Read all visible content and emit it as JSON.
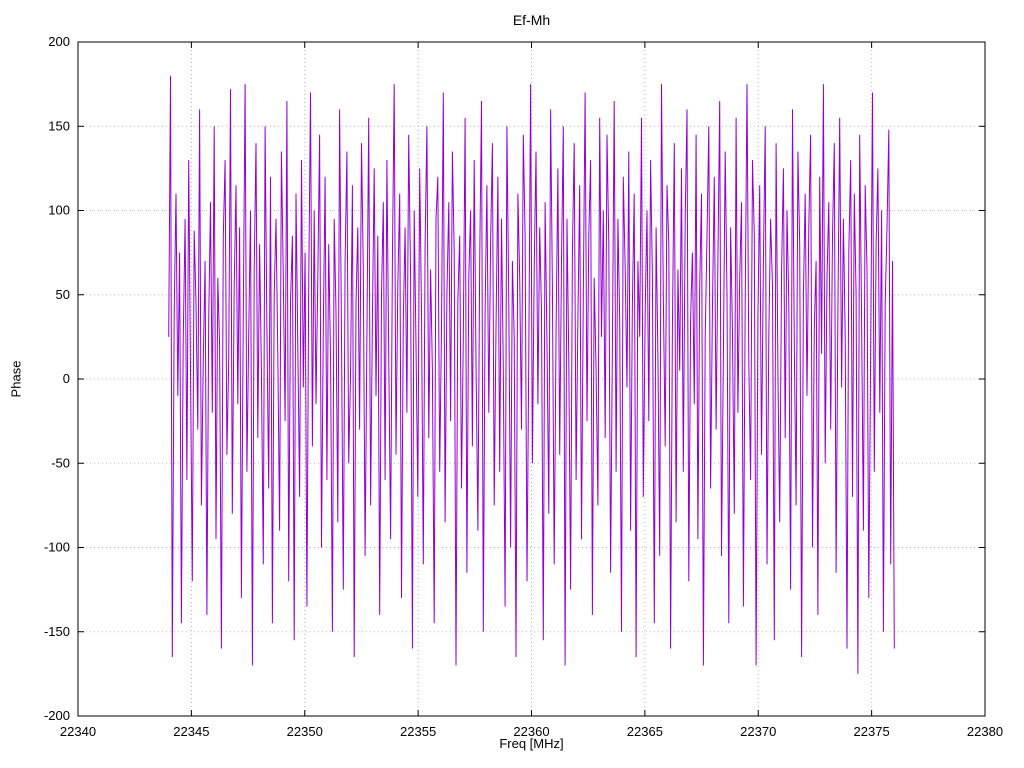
{
  "page": {
    "background": "#ffffff"
  },
  "chart_data": {
    "type": "line",
    "title": "Ef-Mh",
    "xlabel": "Freq [MHz]",
    "ylabel": "Phase",
    "xlim": [
      22340,
      22380
    ],
    "ylim": [
      -200,
      200
    ],
    "xticks": [
      22340,
      22345,
      22350,
      22355,
      22360,
      22365,
      22370,
      22375,
      22380
    ],
    "yticks": [
      -200,
      -150,
      -100,
      -50,
      0,
      50,
      100,
      150,
      200
    ],
    "grid": true,
    "grid_style": "dotted",
    "grid_color": "#b8b8b8",
    "legend": "none",
    "line_color": "#9400d3",
    "series": [
      {
        "name": "Phase",
        "x_start": 22344.0,
        "x_end": 22376.0,
        "values": [
          25,
          180,
          -165,
          40,
          110,
          -10,
          75,
          -145,
          22,
          95,
          -60,
          130,
          5,
          -120,
          88,
          45,
          -30,
          160,
          -75,
          12,
          70,
          -140,
          35,
          105,
          -20,
          150,
          -95,
          60,
          20,
          -160,
          85,
          130,
          -45,
          10,
          172,
          -80,
          55,
          115,
          -15,
          90,
          -130,
          40,
          175,
          -55,
          25,
          100,
          -170,
          65,
          140,
          -35,
          80,
          5,
          -110,
          150,
          30,
          -65,
          120,
          -145,
          50,
          95,
          15,
          -90,
          135,
          60,
          -25,
          165,
          -120,
          45,
          85,
          -155,
          110,
          20,
          -70,
          130,
          -5,
          75,
          -135,
          55,
          170,
          -40,
          100,
          -15,
          60,
          145,
          -100,
          30,
          120,
          -60,
          80,
          10,
          -150,
          95,
          40,
          -85,
          160,
          25,
          -125,
          70,
          135,
          -50,
          5,
          115,
          -165,
          45,
          90,
          -30,
          140,
          65,
          -105,
          25,
          155,
          -75,
          35,
          125,
          -10,
          85,
          -140,
          50,
          105,
          -60,
          130,
          15,
          -95,
          70,
          175,
          -45,
          55,
          110,
          -130,
          35,
          90,
          -20,
          145,
          60,
          -160,
          100,
          20,
          -70,
          125,
          40,
          -110,
          80,
          150,
          -35,
          65,
          5,
          -145,
          95,
          120,
          -55,
          30,
          170,
          -85,
          50,
          105,
          -25,
          135,
          75,
          -170,
          45,
          85,
          -65,
          25,
          155,
          -115,
          60,
          100,
          -40,
          130,
          10,
          -90,
          70,
          165,
          -150,
          40,
          115,
          -20,
          80,
          140,
          -75,
          30,
          120,
          -55,
          95,
          5,
          -135,
          150,
          45,
          -100,
          70,
          25,
          -165,
          110,
          60,
          -30,
          145,
          85,
          -120,
          15,
          175,
          -50,
          65,
          135,
          -15,
          90,
          40,
          -155,
          105,
          20,
          -80,
          160,
          55,
          -110,
          30,
          125,
          -45,
          70,
          150,
          -170,
          95,
          10,
          -125,
          75,
          140,
          -60,
          35,
          115,
          -95,
          50,
          170,
          -25,
          85,
          130,
          -140,
          60,
          5,
          -75,
          155,
          25,
          100,
          -35,
          145,
          80,
          -115,
          20,
          165,
          -55,
          95,
          35,
          -150,
          120,
          65,
          -5,
          135,
          -90,
          45,
          110,
          -165,
          70,
          25,
          155,
          -70,
          40,
          100,
          -25,
          130,
          60,
          -145,
          90,
          15,
          -105,
          175,
          50,
          -40,
          115,
          80,
          -160,
          30,
          140,
          -85,
          65,
          5,
          125,
          -55,
          95,
          160,
          -120,
          35,
          75,
          -15,
          145,
          -95,
          55,
          110,
          -170,
          25,
          85,
          150,
          -65,
          40,
          120,
          -30,
          70,
          165,
          -105,
          15,
          135,
          50,
          -145,
          90,
          30,
          -80,
          155,
          -20,
          60,
          105,
          -135,
          45,
          175,
          10,
          -60,
          130,
          85,
          -170,
          35,
          115,
          -45,
          70,
          150,
          -110,
          25,
          95,
          55,
          -155,
          140,
          5,
          -85,
          65,
          125,
          -35,
          100,
          45,
          -125,
          160,
          20,
          -75,
          135,
          80,
          -165,
          50,
          110,
          -10,
          90,
          145,
          -100,
          30,
          70,
          -140,
          120,
          15,
          175,
          -50,
          60,
          105,
          -30,
          85,
          140,
          -115,
          40,
          155,
          -5,
          95,
          25,
          -160,
          75,
          130,
          -70,
          110,
          50,
          -175,
          145,
          35,
          -90,
          115,
          65,
          -130,
          20,
          170,
          -55,
          80,
          125,
          -20,
          100,
          -150,
          45,
          90,
          148,
          -110,
          70,
          -160
        ]
      }
    ]
  }
}
